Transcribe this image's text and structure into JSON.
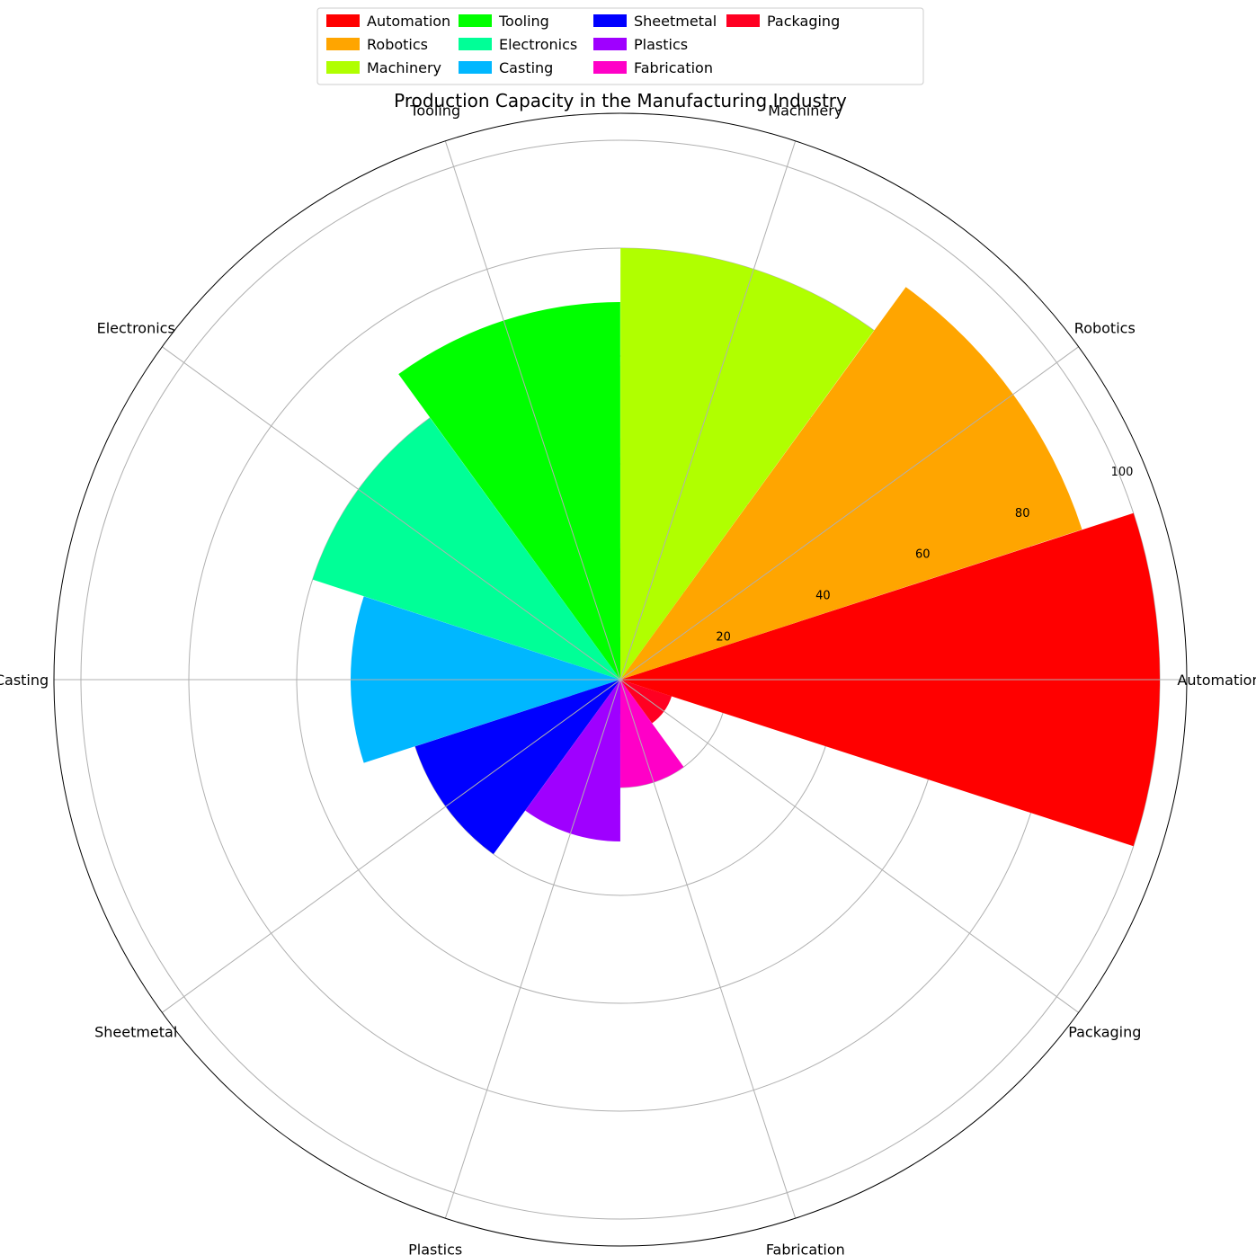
{
  "chart_data": {
    "type": "rose",
    "title": "Production Capacity in the Manufacturing Industry",
    "categories": [
      "Automation",
      "Robotics",
      "Machinery",
      "Tooling",
      "Electronics",
      "Casting",
      "Sheetmetal",
      "Plastics",
      "Fabrication",
      "Packaging"
    ],
    "values": [
      100,
      90,
      80,
      70,
      60,
      50,
      40,
      30,
      20,
      10
    ],
    "colors": [
      "#ff0000",
      "#ffa500",
      "#b0ff00",
      "#00ff00",
      "#00ff97",
      "#00b7ff",
      "#0000ff",
      "#9f00ff",
      "#ff00c7",
      "#ff0022"
    ],
    "rlim": [
      0,
      105
    ],
    "rticks": [
      20,
      40,
      60,
      80,
      100
    ],
    "grid": true,
    "legend": {
      "placement": "top-center",
      "columns": 4,
      "entries": [
        "Automation",
        "Robotics",
        "Machinery",
        "Tooling",
        "Electronics",
        "Casting",
        "Sheetmetal",
        "Plastics",
        "Fabrication",
        "Packaging"
      ]
    }
  }
}
